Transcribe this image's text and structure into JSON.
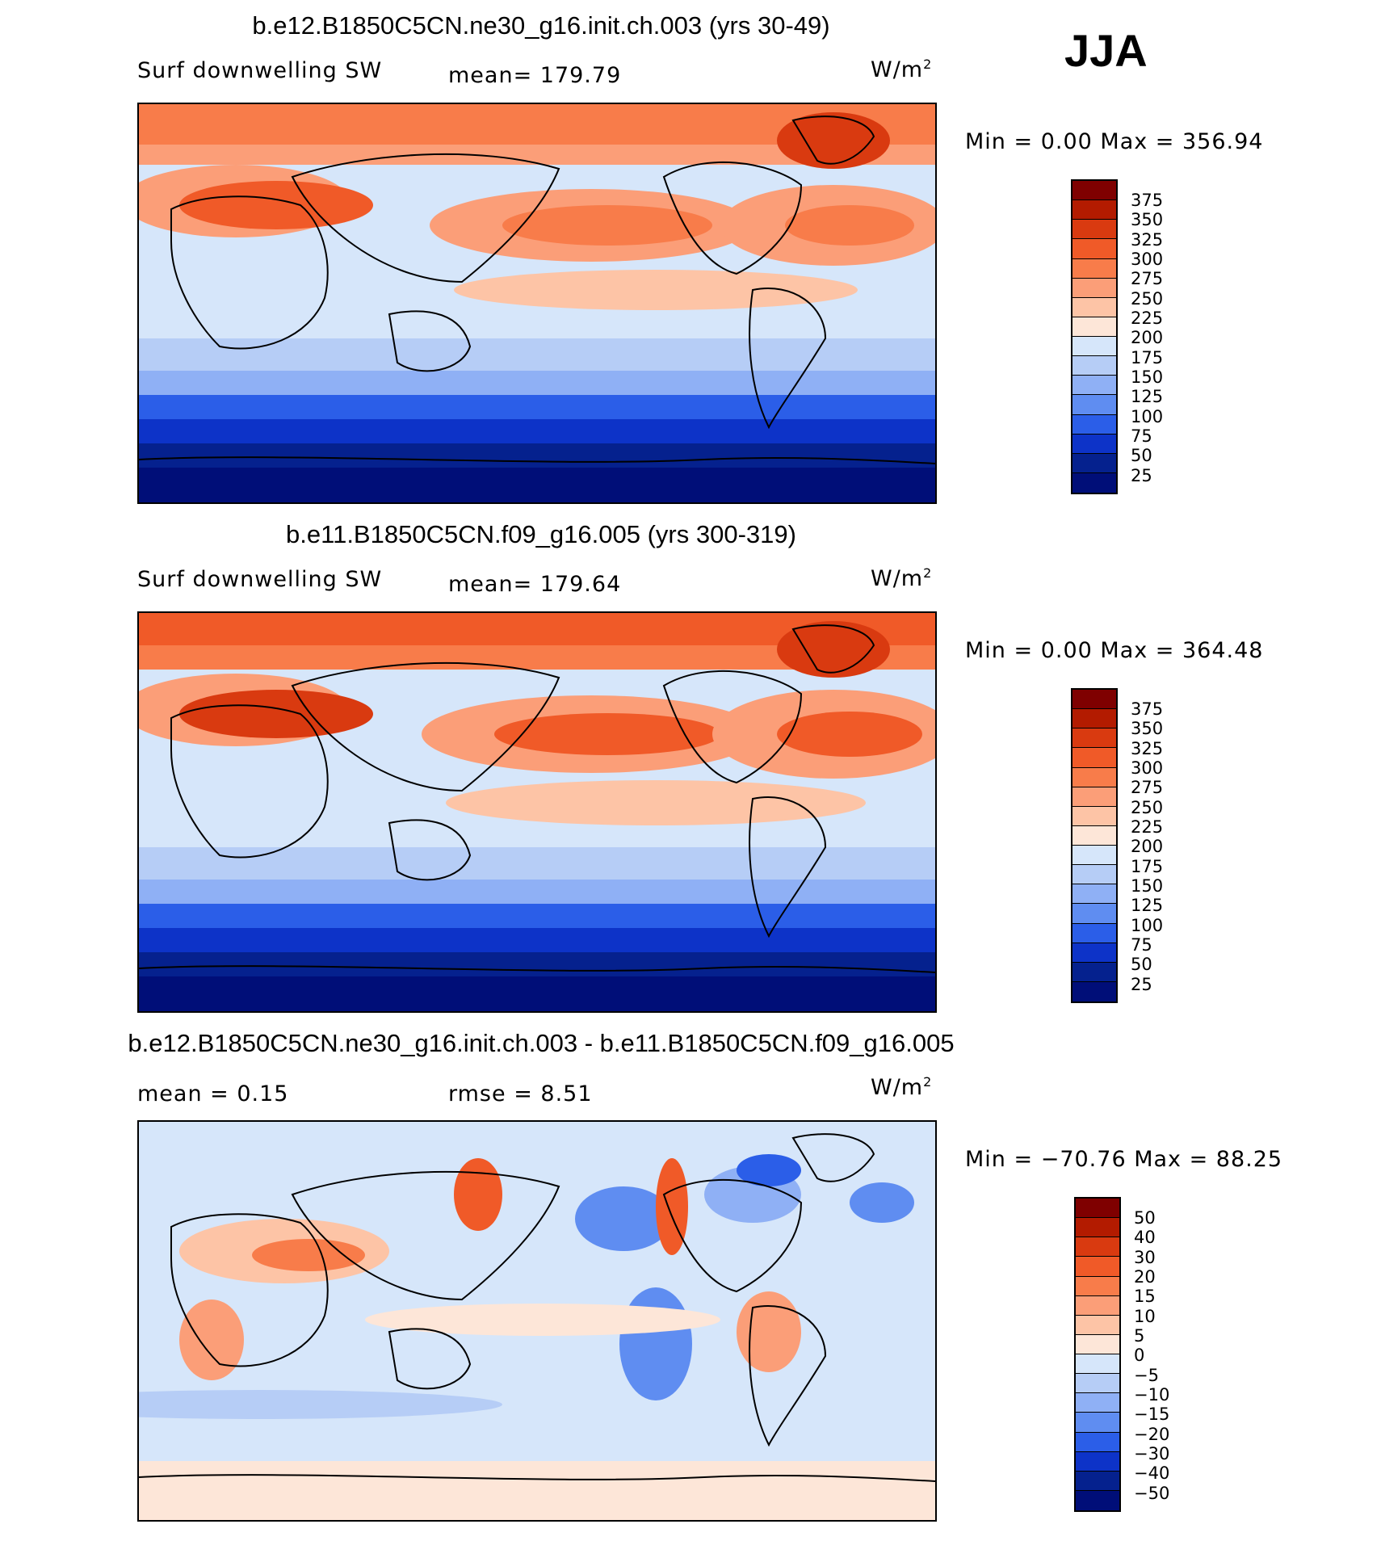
{
  "season": "JJA",
  "panels": [
    {
      "title": "b.e12.B1850C5CN.ne30_g16.init.ch.003 (yrs 30-49)",
      "left_label": "Surf  downwelling  SW",
      "center_label": "mean=  179.79",
      "unit": "W/m",
      "unit_sup": "2",
      "minmax": "Min  =      0.00  Max  =  356.94",
      "legend": {
        "labels": [
          "375",
          "350",
          "325",
          "300",
          "275",
          "250",
          "225",
          "200",
          "175",
          "150",
          "125",
          "100",
          "75",
          "50",
          "25"
        ],
        "colors": [
          "#7f0000",
          "#b31b00",
          "#d93a10",
          "#f05a28",
          "#f87c4a",
          "#fb9e78",
          "#fdc4a6",
          "#fde6d8",
          "#d6e6fa",
          "#b6cdf6",
          "#8fb0f5",
          "#5f8df1",
          "#2b5ee8",
          "#0d33c8",
          "#05218e",
          "#000e78"
        ]
      }
    },
    {
      "title": "b.e11.B1850C5CN.f09_g16.005 (yrs 300-319)",
      "left_label": "Surf  downwelling  SW",
      "center_label": "mean=  179.64",
      "unit": "W/m",
      "unit_sup": "2",
      "minmax": "Min  =      0.00  Max  =  364.48",
      "legend": {
        "labels": [
          "375",
          "350",
          "325",
          "300",
          "275",
          "250",
          "225",
          "200",
          "175",
          "150",
          "125",
          "100",
          "75",
          "50",
          "25"
        ],
        "colors": [
          "#7f0000",
          "#b31b00",
          "#d93a10",
          "#f05a28",
          "#f87c4a",
          "#fb9e78",
          "#fdc4a6",
          "#fde6d8",
          "#d6e6fa",
          "#b6cdf6",
          "#8fb0f5",
          "#5f8df1",
          "#2b5ee8",
          "#0d33c8",
          "#05218e",
          "#000e78"
        ]
      }
    },
    {
      "title": "b.e12.B1850C5CN.ne30_g16.init.ch.003 - b.e11.B1850C5CN.f09_g16.005",
      "left_label": "mean  =     0.15",
      "center_label": "rmse  =     8.51",
      "unit": "W/m",
      "unit_sup": "2",
      "minmax": "Min  =  −70.76  Max  =    88.25",
      "legend": {
        "labels": [
          "50",
          "40",
          "30",
          "20",
          "15",
          "10",
          "5",
          "0",
          "−5",
          "−10",
          "−15",
          "−20",
          "−30",
          "−40",
          "−50"
        ],
        "colors": [
          "#7f0000",
          "#b31b00",
          "#d93a10",
          "#f05a28",
          "#f87c4a",
          "#fb9e78",
          "#fdc4a6",
          "#fde6d8",
          "#d6e6fa",
          "#b6cdf6",
          "#8fb0f5",
          "#5f8df1",
          "#2b5ee8",
          "#0d33c8",
          "#05218e",
          "#000e78"
        ]
      }
    }
  ]
}
